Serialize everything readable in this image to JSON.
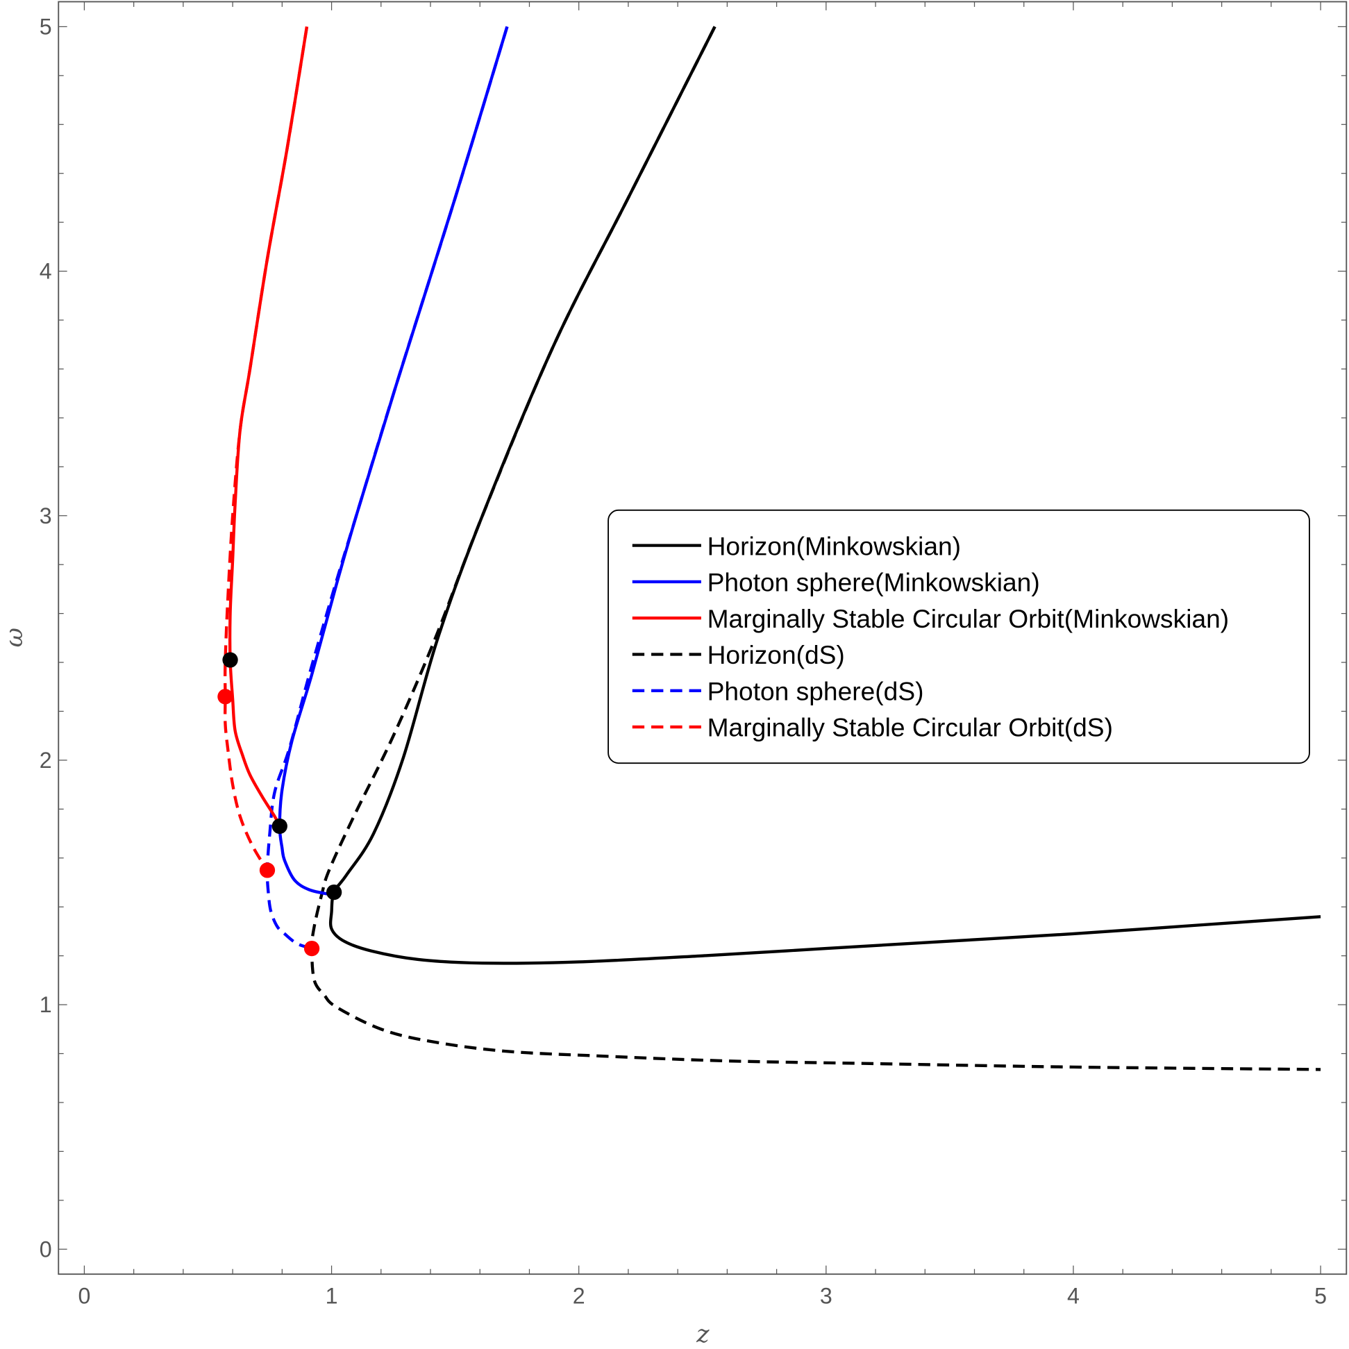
{
  "chart_data": {
    "type": "line",
    "title": "",
    "xlabel": "z",
    "ylabel": "ω",
    "xlim": [
      -0.1,
      5.1
    ],
    "ylim": [
      -0.1,
      5.1
    ],
    "xticks": [
      "0",
      "1",
      "2",
      "3",
      "4",
      "5"
    ],
    "yticks": [
      "0",
      "1",
      "2",
      "3",
      "4",
      "5"
    ],
    "legend_position": "center-right",
    "series": [
      {
        "name": "Horizon(Minkowskian)",
        "color": "#000000",
        "dash": false,
        "points": [
          [
            2.55,
            5
          ],
          [
            2.2,
            4.3
          ],
          [
            1.9,
            3.7
          ],
          [
            1.61,
            3.0
          ],
          [
            1.43,
            2.5
          ],
          [
            1.29,
            2.01
          ],
          [
            1.17,
            1.7
          ],
          [
            1.06,
            1.53
          ],
          [
            1.01,
            1.46
          ],
          [
            1.0,
            1.38
          ],
          [
            1.0,
            1.31
          ],
          [
            1.05,
            1.26
          ],
          [
            1.16,
            1.22
          ],
          [
            1.35,
            1.185
          ],
          [
            1.61,
            1.17
          ],
          [
            2.0,
            1.175
          ],
          [
            2.5,
            1.2
          ],
          [
            3.0,
            1.23
          ],
          [
            3.5,
            1.26
          ],
          [
            4.0,
            1.29
          ],
          [
            4.5,
            1.325
          ],
          [
            5.0,
            1.36
          ]
        ]
      },
      {
        "name": "Photon sphere(Minkowskian)",
        "color": "#0000ff",
        "dash": false,
        "points": [
          [
            1.71,
            5
          ],
          [
            1.5,
            4.3
          ],
          [
            1.26,
            3.53
          ],
          [
            1.1,
            3.0
          ],
          [
            1.02,
            2.72
          ],
          [
            0.92,
            2.35
          ],
          [
            0.84,
            2.08
          ],
          [
            0.8,
            1.88
          ],
          [
            0.79,
            1.73
          ],
          [
            0.8,
            1.64
          ],
          [
            0.81,
            1.59
          ],
          [
            0.85,
            1.51
          ],
          [
            0.91,
            1.47
          ],
          [
            1.0,
            1.45
          ]
        ]
      },
      {
        "name": "Marginally Stable Circular Orbit(Minkowskian)",
        "color": "#ff0000",
        "dash": false,
        "points": [
          [
            0.9,
            5
          ],
          [
            0.82,
            4.5
          ],
          [
            0.74,
            4.05
          ],
          [
            0.67,
            3.6
          ],
          [
            0.63,
            3.35
          ],
          [
            0.61,
            3.05
          ],
          [
            0.6,
            2.82
          ],
          [
            0.59,
            2.6
          ],
          [
            0.59,
            2.41
          ],
          [
            0.6,
            2.25
          ],
          [
            0.61,
            2.12
          ],
          [
            0.64,
            2.02
          ],
          [
            0.67,
            1.94
          ],
          [
            0.72,
            1.85
          ],
          [
            0.77,
            1.77
          ],
          [
            0.79,
            1.73
          ]
        ]
      },
      {
        "name": "Horizon(dS)",
        "color": "#000000",
        "dash": true,
        "points": [
          [
            2.55,
            5
          ],
          [
            2.2,
            4.3
          ],
          [
            1.9,
            3.7
          ],
          [
            1.61,
            3.0
          ],
          [
            1.42,
            2.5
          ],
          [
            1.25,
            2.1
          ],
          [
            1.09,
            1.77
          ],
          [
            0.99,
            1.55
          ],
          [
            0.96,
            1.45
          ],
          [
            0.93,
            1.32
          ],
          [
            0.92,
            1.23
          ],
          [
            0.93,
            1.1
          ],
          [
            0.97,
            1.04
          ],
          [
            1.02,
            0.99
          ],
          [
            1.2,
            0.9
          ],
          [
            1.4,
            0.85
          ],
          [
            1.7,
            0.81
          ],
          [
            2.09,
            0.79
          ],
          [
            2.6,
            0.77
          ],
          [
            3.14,
            0.76
          ],
          [
            4.0,
            0.745
          ],
          [
            5.0,
            0.735
          ]
        ]
      },
      {
        "name": "Photon sphere(dS)",
        "color": "#0000ff",
        "dash": true,
        "points": [
          [
            1.71,
            5
          ],
          [
            1.5,
            4.3
          ],
          [
            1.26,
            3.53
          ],
          [
            1.1,
            3.0
          ],
          [
            1.01,
            2.7
          ],
          [
            0.91,
            2.35
          ],
          [
            0.83,
            2.05
          ],
          [
            0.77,
            1.87
          ],
          [
            0.75,
            1.7
          ],
          [
            0.74,
            1.55
          ],
          [
            0.745,
            1.45
          ],
          [
            0.755,
            1.38
          ],
          [
            0.78,
            1.32
          ],
          [
            0.81,
            1.29
          ],
          [
            0.86,
            1.25
          ],
          [
            0.92,
            1.23
          ]
        ]
      },
      {
        "name": "Marginally Stable Circular Orbit(dS)",
        "color": "#ff0000",
        "dash": true,
        "points": [
          [
            0.9,
            5
          ],
          [
            0.82,
            4.5
          ],
          [
            0.74,
            4.05
          ],
          [
            0.67,
            3.6
          ],
          [
            0.63,
            3.35
          ],
          [
            0.6,
            3.0
          ],
          [
            0.58,
            2.65
          ],
          [
            0.57,
            2.4
          ],
          [
            0.57,
            2.26
          ],
          [
            0.57,
            2.15
          ],
          [
            0.58,
            2.05
          ],
          [
            0.6,
            1.9
          ],
          [
            0.63,
            1.77
          ],
          [
            0.68,
            1.65
          ],
          [
            0.74,
            1.55
          ]
        ]
      }
    ],
    "markers": [
      {
        "color": "#000000",
        "points": [
          [
            0.59,
            2.41
          ],
          [
            0.79,
            1.73
          ],
          [
            1.01,
            1.46
          ]
        ]
      },
      {
        "color": "#ff0000",
        "points": [
          [
            0.57,
            2.26
          ],
          [
            0.74,
            1.55
          ],
          [
            0.92,
            1.23
          ]
        ]
      }
    ]
  }
}
